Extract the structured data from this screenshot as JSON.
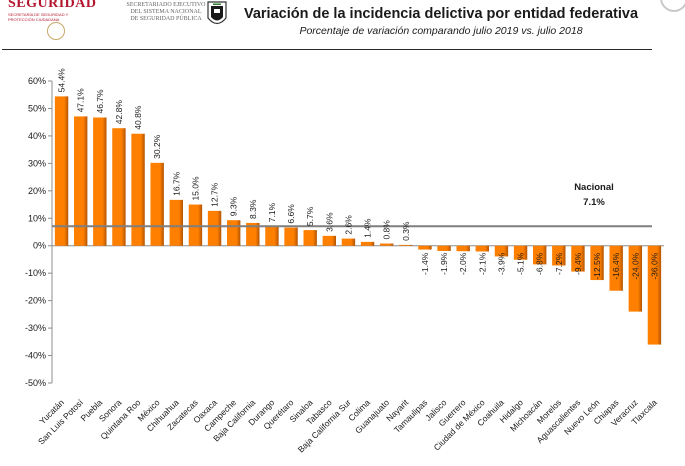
{
  "header": {
    "logo_text": "SEGURIDAD",
    "logo_subtext": "SECRETARÍA DE SEGURIDAD Y PROTECCIÓN CIUDADANA",
    "agency_line1": "SECRETARIADO EJECUTIVO",
    "agency_line2": "DEL SISTEMA NACIONAL",
    "agency_line3": "DE SEGURIDAD PÚBLICA"
  },
  "colors": {
    "bar": "#ff7f00",
    "bar_shadow": "#b35400",
    "reference_line": "#7f7f7f",
    "brand": "#b4162e"
  },
  "chart_data": {
    "type": "bar",
    "title": "Variación de la incidencia delictiva por entidad federativa",
    "subtitle": "Porcentaje de variación comparando julio 2019 vs. julio 2018",
    "categories": [
      "Yucatán",
      "San Luis Potosí",
      "Puebla",
      "Sonora",
      "Quintana Roo",
      "México",
      "Chihuahua",
      "Zacatecas",
      "Oaxaca",
      "Campeche",
      "Baja California",
      "Durango",
      "Querétaro",
      "Sinaloa",
      "Tabasco",
      "Baja California Sur",
      "Colima",
      "Guanajuato",
      "Nayarit",
      "Tamaulipas",
      "Jalisco",
      "Guerrero",
      "Ciudad de México",
      "Coahuila",
      "Hidalgo",
      "Michoacán",
      "Morelos",
      "Aguascalientes",
      "Nuevo León",
      "Chiapas",
      "Veracruz",
      "Tlaxcala"
    ],
    "values": [
      54.4,
      47.1,
      46.7,
      42.8,
      40.8,
      30.2,
      16.7,
      15.0,
      12.7,
      9.3,
      8.3,
      7.1,
      6.6,
      5.7,
      3.6,
      2.6,
      1.4,
      0.8,
      0.3,
      -1.4,
      -1.9,
      -2.0,
      -2.1,
      -3.9,
      -5.1,
      -6.8,
      -7.2,
      -9.4,
      -12.5,
      -16.4,
      -24.0,
      -36.0
    ],
    "value_labels": [
      "54.4%",
      "47.1%",
      "46.7%",
      "42.8%",
      "40.8%",
      "30.2%",
      "16.7%",
      "15.0%",
      "12.7%",
      "9.3%",
      "8.3%",
      "7.1%",
      "6.6%",
      "5.7%",
      "3.6%",
      "2.6%",
      "1.4%",
      "0.8%",
      "0.3%",
      "-1.4%",
      "-1.9%",
      "-2.0%",
      "-2.1%",
      "-3.9%",
      "-5.1%",
      "-6.8%",
      "-7.2%",
      "-9.4%",
      "-12.5%",
      "-16.4%",
      "-24.0%",
      "-36.0%"
    ],
    "ylim": [
      -50,
      60
    ],
    "yticks": [
      60,
      50,
      40,
      30,
      20,
      10,
      0,
      -10,
      -20,
      -30,
      -40,
      -50
    ],
    "ytick_labels": [
      "60%",
      "50%",
      "40%",
      "30%",
      "20%",
      "10%",
      "0%",
      "-10%",
      "-20%",
      "-30%",
      "-40%",
      "-50%"
    ],
    "reference": {
      "label": "Nacional",
      "value": 7.1,
      "value_label": "7.1%"
    },
    "grid": false,
    "legend": "none"
  }
}
